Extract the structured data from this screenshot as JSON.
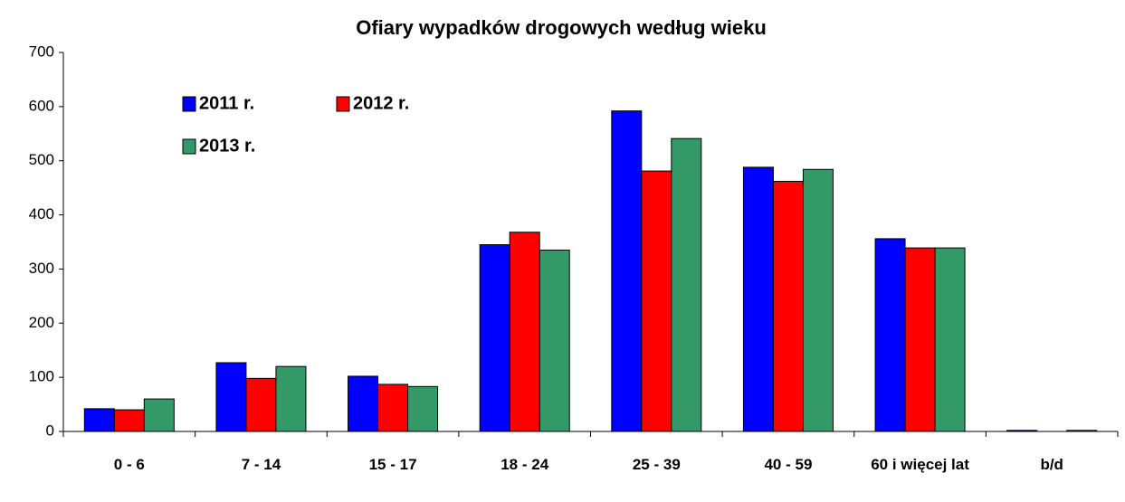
{
  "chart_data": {
    "type": "bar",
    "title": "Ofiary wypadków drogowych według wieku",
    "categories": [
      "0 - 6",
      "7 - 14",
      "15 - 17",
      "18 - 24",
      "25 - 39",
      "40 - 59",
      "60 i więcej lat",
      "b/d"
    ],
    "series": [
      {
        "name": "2011 r.",
        "color": "#0000ff",
        "values": [
          42,
          127,
          102,
          345,
          592,
          488,
          356,
          2
        ]
      },
      {
        "name": "2012 r.",
        "color": "#ff0000",
        "values": [
          40,
          98,
          87,
          368,
          481,
          462,
          339,
          0
        ]
      },
      {
        "name": "2013 r.",
        "color": "#339966",
        "values": [
          60,
          120,
          83,
          335,
          541,
          484,
          339,
          2
        ]
      }
    ],
    "ylim": [
      0,
      700
    ],
    "yticks": [
      0,
      100,
      200,
      300,
      400,
      500,
      600,
      700
    ],
    "grid": false
  }
}
